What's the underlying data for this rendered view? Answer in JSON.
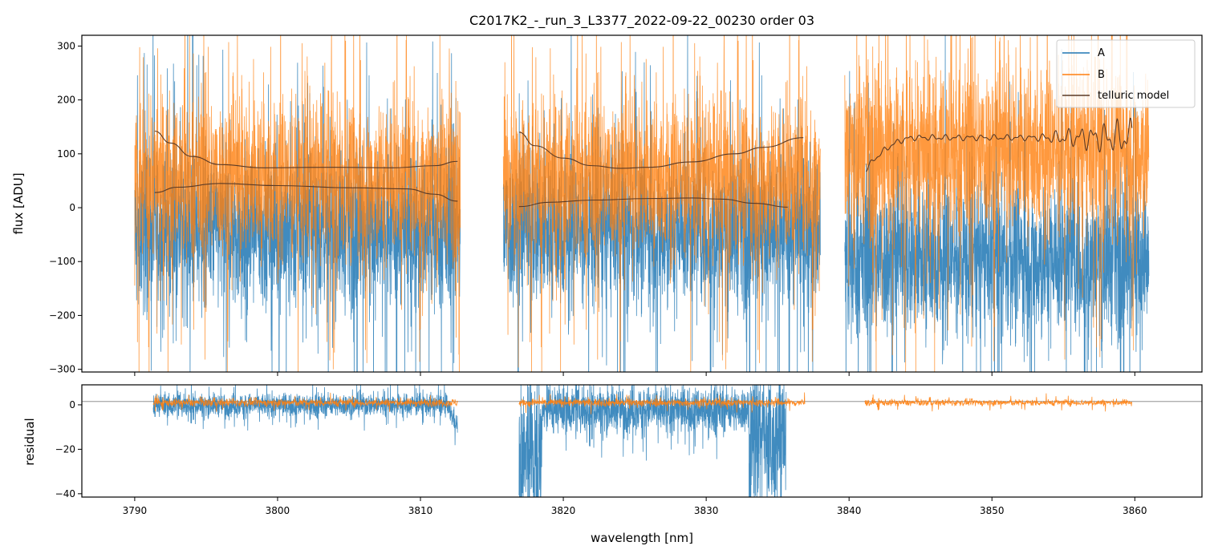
{
  "chart_data": {
    "type": "line",
    "title": "C2017K2_-_run_3_L3377_2022-09-22_00230  order 03",
    "xlabel": "wavelength [nm]",
    "xlim": [
      3786.3,
      3864.7
    ],
    "xticks": [
      3790,
      3800,
      3810,
      3820,
      3830,
      3840,
      3850,
      3860
    ],
    "colors": {
      "A": "#1f77b4",
      "B": "#ff7f0e",
      "telluric": "#5a3a26",
      "zero": "#808080"
    },
    "legend": {
      "placement": "top-right",
      "entries": [
        "A",
        "B",
        "telluric model"
      ]
    },
    "top_panel": {
      "ylabel": "flux [ADU]",
      "ylim": [
        -305,
        320
      ],
      "yticks": [
        300,
        200,
        100,
        0,
        -100,
        -200,
        -300
      ],
      "segments": [
        {
          "range": [
            3790.0,
            3812.8
          ],
          "a_center": -40,
          "a_spread": 130,
          "b_center": 55,
          "b_spread": 130
        },
        {
          "range": [
            3815.8,
            3838.0
          ],
          "a_center": -40,
          "a_spread": 130,
          "b_center": 55,
          "b_spread": 130
        },
        {
          "range": [
            3839.7,
            3861.0
          ],
          "a_center": -95,
          "a_spread": 130,
          "b_center": 105,
          "b_spread": 140
        }
      ],
      "telluric_curves": [
        {
          "name": "seg1-upper",
          "x": [
            3791.4,
            3792.5,
            3794,
            3796,
            3799,
            3804,
            3808,
            3811,
            3812.6
          ],
          "y": [
            142,
            120,
            95,
            80,
            74,
            75,
            74,
            78,
            86
          ]
        },
        {
          "name": "seg1-lower",
          "x": [
            3791.4,
            3793,
            3796,
            3800,
            3805,
            3809,
            3811,
            3812.6
          ],
          "y": [
            28,
            38,
            45,
            41,
            37,
            35,
            25,
            12
          ]
        },
        {
          "name": "seg2-upper",
          "x": [
            3816.9,
            3818,
            3820,
            3822,
            3824,
            3826,
            3829,
            3832,
            3834,
            3836.8
          ],
          "y": [
            140,
            115,
            92,
            78,
            73,
            75,
            85,
            100,
            112,
            130
          ]
        },
        {
          "name": "seg2-lower",
          "x": [
            3816.9,
            3819,
            3822,
            3826,
            3829,
            3831,
            3833.5,
            3835.7
          ],
          "y": [
            2,
            10,
            14,
            17,
            18,
            16,
            8,
            1
          ]
        },
        {
          "name": "seg3",
          "x_start": 3841.2,
          "x_end": 3859.8,
          "y_start": 72,
          "y_plateau": 130,
          "oscillating": true
        }
      ]
    },
    "bottom_panel": {
      "ylabel": "residual",
      "ylim": [
        -41.5,
        9
      ],
      "yticks": [
        0,
        -20,
        -40
      ],
      "reference_line": 1.5,
      "residual_A": [
        {
          "range": [
            3791.3,
            3812.6
          ],
          "center": 0,
          "spread": 5
        },
        {
          "range": [
            3816.9,
            3835.6
          ],
          "center": -2,
          "spread": 10
        }
      ],
      "residual_B": [
        {
          "range": [
            3791.3,
            3812.6
          ],
          "center": 1,
          "spread": 1.5
        },
        {
          "range": [
            3816.9,
            3836.9
          ],
          "center": 1,
          "spread": 1.5
        },
        {
          "range": [
            3841.1,
            3859.8
          ],
          "center": 1,
          "spread": 1.2
        }
      ]
    }
  }
}
